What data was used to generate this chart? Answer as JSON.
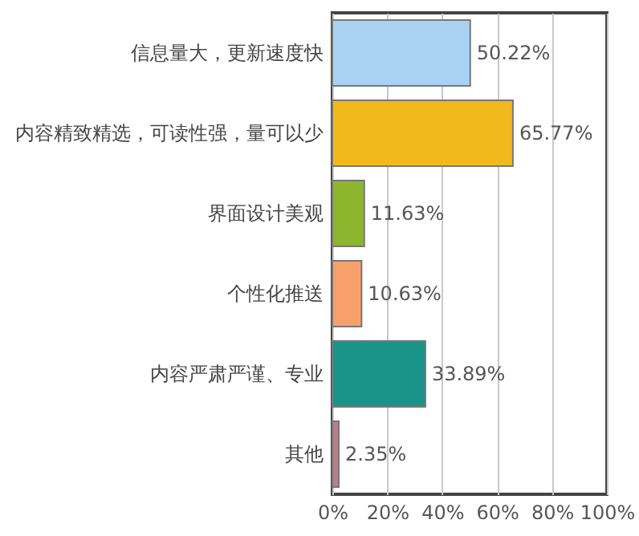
{
  "chart_data": {
    "type": "bar",
    "orientation": "horizontal",
    "categories": [
      "信息量大，更新速度快",
      "内容精致精选，可读性强，量可以少",
      "界面设计美观",
      "个性化推送",
      "内容严肃严谨、专业",
      "其他"
    ],
    "values": [
      50.22,
      65.77,
      11.63,
      10.63,
      33.89,
      2.35
    ],
    "colors": [
      "#a9d2f2",
      "#f2b91c",
      "#8db52e",
      "#f7a06c",
      "#1a9389",
      "#c27a88"
    ],
    "value_labels": [
      "50.22%",
      "65.77%",
      "11.63%",
      "10.63%",
      "33.89%",
      "2.35%"
    ],
    "xlim": [
      0,
      100
    ],
    "xticks": [
      {
        "value": 0,
        "label": "0%"
      },
      {
        "value": 20,
        "label": "20%"
      },
      {
        "value": 40,
        "label": "40%"
      },
      {
        "value": 60,
        "label": "60%"
      },
      {
        "value": 80,
        "label": "80%"
      },
      {
        "value": 100,
        "label": "100%"
      }
    ],
    "grid": "x"
  }
}
